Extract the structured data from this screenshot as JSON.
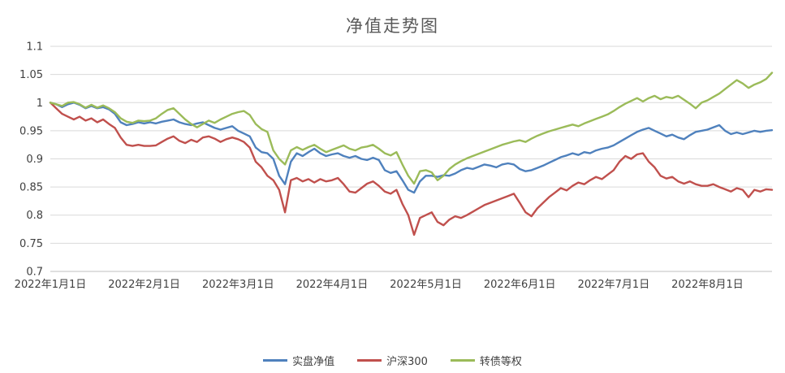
{
  "chart_data": {
    "type": "line",
    "title": "净值走势图",
    "xlabel": "",
    "ylabel": "",
    "ylim": [
      0.7,
      1.1
    ],
    "yticks": [
      0.7,
      0.75,
      0.8,
      0.85,
      0.9,
      0.95,
      1,
      1.05,
      1.1
    ],
    "ytick_labels": [
      "0.7",
      "0.75",
      "0.8",
      "0.85",
      "0.9",
      "0.95",
      "1",
      "1.05",
      "1.1"
    ],
    "xtick_labels": [
      "2022年1月1日",
      "2022年2月1日",
      "2022年3月1日",
      "2022年4月1日",
      "2022年5月1日",
      "2022年6月1日",
      "2022年7月1日",
      "2022年8月1日"
    ],
    "xtick_indices": [
      0,
      16,
      32,
      48,
      64,
      80,
      96,
      112
    ],
    "grid": "horizontal",
    "legend_position": "bottom",
    "series": [
      {
        "name": "实盘净值",
        "color": "#4F81BD",
        "values": [
          1.0,
          0.997,
          0.992,
          0.997,
          1.0,
          0.996,
          0.99,
          0.994,
          0.99,
          0.992,
          0.988,
          0.98,
          0.965,
          0.96,
          0.962,
          0.965,
          0.963,
          0.965,
          0.963,
          0.966,
          0.968,
          0.97,
          0.965,
          0.962,
          0.96,
          0.963,
          0.965,
          0.96,
          0.955,
          0.952,
          0.955,
          0.958,
          0.95,
          0.945,
          0.94,
          0.92,
          0.912,
          0.91,
          0.9,
          0.87,
          0.855,
          0.895,
          0.91,
          0.905,
          0.912,
          0.918,
          0.91,
          0.905,
          0.908,
          0.91,
          0.905,
          0.902,
          0.905,
          0.9,
          0.898,
          0.902,
          0.898,
          0.88,
          0.875,
          0.878,
          0.862,
          0.845,
          0.84,
          0.86,
          0.87,
          0.87,
          0.868,
          0.871,
          0.87,
          0.874,
          0.88,
          0.884,
          0.882,
          0.886,
          0.89,
          0.888,
          0.885,
          0.89,
          0.892,
          0.89,
          0.882,
          0.878,
          0.88,
          0.884,
          0.888,
          0.893,
          0.898,
          0.903,
          0.906,
          0.91,
          0.907,
          0.912,
          0.91,
          0.915,
          0.918,
          0.92,
          0.924,
          0.93,
          0.936,
          0.942,
          0.948,
          0.952,
          0.955,
          0.95,
          0.945,
          0.94,
          0.943,
          0.938,
          0.935,
          0.942,
          0.948,
          0.95,
          0.952,
          0.956,
          0.96,
          0.95,
          0.944,
          0.947,
          0.944,
          0.947,
          0.95,
          0.948,
          0.95,
          0.951
        ]
      },
      {
        "name": "沪深300",
        "color": "#C0504D",
        "values": [
          1.0,
          0.99,
          0.98,
          0.975,
          0.97,
          0.975,
          0.968,
          0.972,
          0.965,
          0.97,
          0.962,
          0.955,
          0.938,
          0.925,
          0.923,
          0.925,
          0.923,
          0.923,
          0.924,
          0.93,
          0.936,
          0.94,
          0.932,
          0.928,
          0.934,
          0.93,
          0.938,
          0.94,
          0.936,
          0.93,
          0.935,
          0.938,
          0.935,
          0.93,
          0.92,
          0.895,
          0.885,
          0.87,
          0.862,
          0.845,
          0.805,
          0.862,
          0.866,
          0.86,
          0.864,
          0.858,
          0.864,
          0.86,
          0.862,
          0.866,
          0.855,
          0.842,
          0.84,
          0.848,
          0.856,
          0.86,
          0.852,
          0.842,
          0.838,
          0.845,
          0.82,
          0.8,
          0.765,
          0.795,
          0.8,
          0.805,
          0.788,
          0.782,
          0.792,
          0.798,
          0.795,
          0.8,
          0.806,
          0.812,
          0.818,
          0.822,
          0.826,
          0.83,
          0.834,
          0.838,
          0.822,
          0.805,
          0.798,
          0.812,
          0.822,
          0.832,
          0.84,
          0.848,
          0.844,
          0.852,
          0.858,
          0.855,
          0.862,
          0.868,
          0.864,
          0.872,
          0.88,
          0.895,
          0.905,
          0.9,
          0.908,
          0.91,
          0.895,
          0.885,
          0.87,
          0.865,
          0.868,
          0.86,
          0.856,
          0.86,
          0.855,
          0.852,
          0.852,
          0.855,
          0.85,
          0.846,
          0.842,
          0.848,
          0.845,
          0.832,
          0.845,
          0.842,
          0.846,
          0.845
        ]
      },
      {
        "name": "转债等权",
        "color": "#9BBB59",
        "values": [
          1.0,
          0.997,
          0.994,
          1.0,
          1.001,
          0.997,
          0.991,
          0.996,
          0.991,
          0.995,
          0.99,
          0.983,
          0.972,
          0.966,
          0.964,
          0.968,
          0.967,
          0.968,
          0.972,
          0.98,
          0.987,
          0.99,
          0.98,
          0.97,
          0.962,
          0.956,
          0.962,
          0.968,
          0.964,
          0.97,
          0.975,
          0.98,
          0.983,
          0.985,
          0.978,
          0.962,
          0.953,
          0.948,
          0.915,
          0.9,
          0.89,
          0.915,
          0.921,
          0.916,
          0.921,
          0.925,
          0.918,
          0.912,
          0.916,
          0.92,
          0.924,
          0.918,
          0.915,
          0.92,
          0.922,
          0.925,
          0.918,
          0.91,
          0.906,
          0.912,
          0.89,
          0.87,
          0.856,
          0.878,
          0.88,
          0.876,
          0.862,
          0.87,
          0.882,
          0.89,
          0.896,
          0.901,
          0.905,
          0.909,
          0.913,
          0.917,
          0.921,
          0.925,
          0.928,
          0.931,
          0.933,
          0.93,
          0.936,
          0.941,
          0.945,
          0.949,
          0.952,
          0.955,
          0.958,
          0.961,
          0.958,
          0.963,
          0.967,
          0.971,
          0.975,
          0.979,
          0.985,
          0.992,
          0.998,
          1.003,
          1.008,
          1.002,
          1.008,
          1.012,
          1.006,
          1.01,
          1.008,
          1.012,
          1.005,
          0.998,
          0.99,
          1.0,
          1.004,
          1.01,
          1.016,
          1.024,
          1.032,
          1.04,
          1.034,
          1.026,
          1.032,
          1.036,
          1.042,
          1.053
        ]
      }
    ]
  },
  "colors": {
    "grid": "#d9d9d9",
    "axis": "#bfbfbf",
    "title": "#595959",
    "tick_text": "#404040"
  }
}
